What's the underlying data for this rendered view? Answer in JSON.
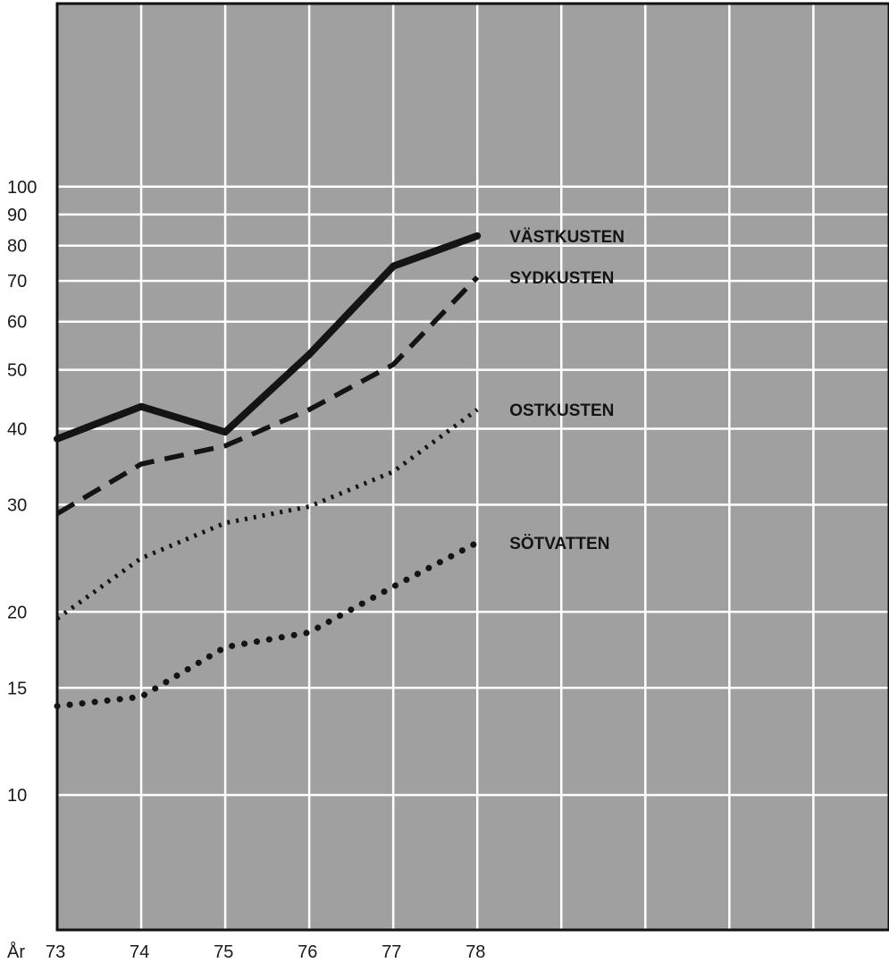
{
  "chart_data": {
    "type": "line",
    "title": "",
    "xlabel": "År",
    "ylabel": "",
    "y_scale": "log",
    "ylim": [
      6,
      200
    ],
    "xlim": [
      73,
      82.9
    ],
    "x": [
      73,
      74,
      75,
      76,
      77,
      78
    ],
    "x_tick_labels": [
      "73",
      "74",
      "75",
      "76",
      "77",
      "78"
    ],
    "y_ticks": [
      10,
      15,
      20,
      30,
      40,
      50,
      60,
      70,
      80,
      90,
      100
    ],
    "y_tick_labels": [
      "10",
      "15",
      "20",
      "30",
      "40",
      "50",
      "60",
      "70",
      "80",
      "90",
      "100"
    ],
    "grid": true,
    "background_color": "#a0a0a0",
    "grid_color": "#ffffff",
    "line_color": "#141414",
    "series": [
      {
        "name": "VÄSTKUSTEN",
        "style": "solid",
        "values": [
          38.5,
          43.5,
          39.5,
          53,
          74,
          83
        ]
      },
      {
        "name": "SYDKUSTEN",
        "style": "dashed",
        "values": [
          29,
          35,
          37.5,
          43,
          51,
          71
        ]
      },
      {
        "name": "OSTKUSTEN",
        "style": "dotted",
        "values": [
          19.5,
          24.5,
          28,
          29.8,
          34,
          43
        ]
      },
      {
        "name": "SÖTVATTEN",
        "style": "sparse-dotted",
        "values": [
          14,
          14.5,
          17.5,
          18.5,
          22,
          26
        ]
      }
    ]
  }
}
